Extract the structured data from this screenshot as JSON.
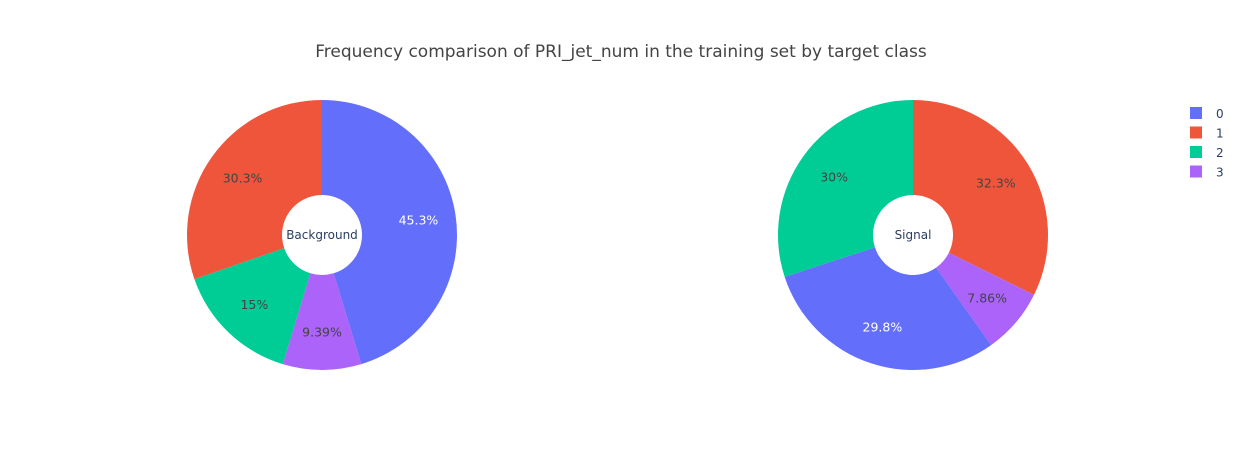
{
  "chart_data": {
    "type": "pie",
    "title": "Frequency comparison of PRI_jet_num in the training set by target class",
    "colors": {
      "0": "#636efa",
      "1": "#ef553b",
      "2": "#00cc96",
      "3": "#ab63fa"
    },
    "legend": {
      "placement": "top-right",
      "entries": [
        "0",
        "1",
        "2",
        "3"
      ]
    },
    "pies": [
      {
        "hole_label": "Background",
        "slices": [
          {
            "category": "0",
            "percent": 45.3,
            "label": "45.3%"
          },
          {
            "category": "3",
            "percent": 9.39,
            "label": "9.39%"
          },
          {
            "category": "2",
            "percent": 15,
            "label": "15%"
          },
          {
            "category": "1",
            "percent": 30.3,
            "label": "30.3%"
          }
        ]
      },
      {
        "hole_label": "Signal",
        "slices": [
          {
            "category": "1",
            "percent": 32.3,
            "label": "32.3%"
          },
          {
            "category": "3",
            "percent": 7.86,
            "label": "7.86%"
          },
          {
            "category": "0",
            "percent": 29.8,
            "label": "29.8%"
          },
          {
            "category": "2",
            "percent": 30,
            "label": "30%"
          }
        ]
      }
    ]
  }
}
